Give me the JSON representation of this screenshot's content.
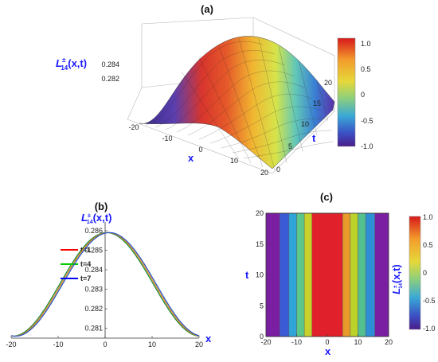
{
  "panels": {
    "a": "(a)",
    "b": "(b)",
    "c": "(c)"
  },
  "chart_data": [
    {
      "type": "surface",
      "panel": "(a)",
      "xlabel": "x",
      "ylabel": "t",
      "zlabel": "L±14(x,t)",
      "xlim": [
        -20,
        20
      ],
      "ylim": [
        0,
        20
      ],
      "x_ticks": [
        "-20",
        "-10",
        "0",
        "10",
        "20"
      ],
      "t_ticks": [
        "0",
        "5",
        "10",
        "15",
        "20"
      ],
      "z_ticks": [
        "0.282",
        "0.284"
      ],
      "z_peak": 0.2858,
      "z_edge": 0.2806,
      "profile": "bell along x, peak drifting toward +x as t increases",
      "colorbar": {
        "ticks": [
          "1.0",
          "0.5",
          "0",
          "-0.5",
          "-1.0"
        ],
        "range": [
          -1.0,
          1.0
        ]
      }
    },
    {
      "type": "line",
      "panel": "(b)",
      "xlabel": "x",
      "ylabel": "L±14(x,t)",
      "xlim": [
        -20,
        20
      ],
      "ylim": [
        0.2805,
        0.2862
      ],
      "x_ticks": [
        "-20",
        "-10",
        "0",
        "10",
        "20"
      ],
      "y_ticks": [
        "0.281",
        "0.282",
        "0.283",
        "0.284",
        "0.285",
        "0.286"
      ],
      "x": [
        -20,
        -18,
        -16,
        -14,
        -12,
        -10,
        -8,
        -6,
        -4,
        -2,
        0,
        2,
        4,
        6,
        8,
        10,
        12,
        14,
        16,
        18,
        20
      ],
      "series": [
        {
          "name": "t=1",
          "color": "#ff0000",
          "shift": 0.3,
          "y": [
            0.2806,
            0.2808,
            0.2813,
            0.2821,
            0.283,
            0.2839,
            0.2847,
            0.2853,
            0.2857,
            0.2859,
            0.2859,
            0.2857,
            0.2853,
            0.2847,
            0.2839,
            0.283,
            0.2821,
            0.2813,
            0.2808,
            0.2806,
            0.2806
          ]
        },
        {
          "name": "t=4",
          "color": "#00cc00",
          "shift": 0.6,
          "y": [
            0.2806,
            0.2807,
            0.2812,
            0.282,
            0.2829,
            0.2838,
            0.2846,
            0.2853,
            0.2857,
            0.2859,
            0.2859,
            0.2858,
            0.2854,
            0.2848,
            0.284,
            0.2831,
            0.2822,
            0.2814,
            0.2808,
            0.2806,
            0.2806
          ]
        },
        {
          "name": "t=7",
          "color": "#0000ff",
          "shift": 0.9,
          "y": [
            0.2806,
            0.2807,
            0.2811,
            0.2819,
            0.2828,
            0.2837,
            0.2846,
            0.2852,
            0.2857,
            0.2859,
            0.2859,
            0.2858,
            0.2854,
            0.2849,
            0.2841,
            0.2832,
            0.2823,
            0.2815,
            0.2809,
            0.2806,
            0.2806
          ]
        }
      ]
    },
    {
      "type": "heatmap",
      "panel": "(c)",
      "xlabel": "x",
      "ylabel": "t",
      "zlabel": "L±14(x,t)",
      "xlim": [
        -20,
        20
      ],
      "ylim": [
        0,
        20
      ],
      "x_ticks": [
        "-20",
        "-10",
        "0",
        "10",
        "20"
      ],
      "y_ticks": [
        "0",
        "5",
        "10",
        "15",
        "20"
      ],
      "bands_x": [
        -20,
        -15.5,
        -12.5,
        -10,
        -7.5,
        -5,
        5,
        7.5,
        10,
        12.5,
        15.5,
        20
      ],
      "band_colors": [
        "#7a1fa2",
        "#3b5bd6",
        "#2fa4d8",
        "#5cc78a",
        "#c7d12a",
        "#e0212b",
        "#e89a2a",
        "#bcd12a",
        "#54c08f",
        "#2f8fd6",
        "#7a1fa2"
      ],
      "colorbar": {
        "ticks": [
          "1.0",
          "0.5",
          "0",
          "-0.5",
          "-1.0"
        ],
        "range": [
          -1.0,
          1.0
        ]
      }
    }
  ]
}
